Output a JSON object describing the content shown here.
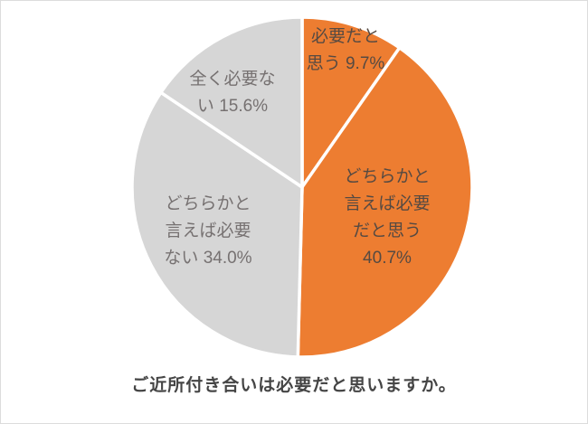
{
  "chart_data": {
    "type": "pie",
    "title": "ご近所付き合いは必要だと思いますか。",
    "direction": "clockwise",
    "start_angle_deg": 0,
    "legend": "none",
    "slices": [
      {
        "label": "必要だと思う",
        "value": 9.7,
        "color": "#ED7D31",
        "text_color": "#564a42",
        "label_text": "必要だと\n思う 9.7%"
      },
      {
        "label": "どちらかと言えば必要だと思う",
        "value": 40.7,
        "color": "#ED7D31",
        "text_color": "#564a42",
        "label_text": "どちらかと\n言えば必要\nだと思う\n40.7%"
      },
      {
        "label": "どちらかと言えば必要ない",
        "value": 34.0,
        "color": "#D6D6D6",
        "text_color": "#767171",
        "label_text": "どちらかと\n言えば必要\nない 34.0%"
      },
      {
        "label": "全く必要ない",
        "value": 15.6,
        "color": "#D6D6D6",
        "text_color": "#767171",
        "label_text": "全く必要な\nい 15.6%"
      }
    ]
  },
  "style": {
    "slice_divider_color": "#ffffff",
    "title_color": "#454545"
  }
}
